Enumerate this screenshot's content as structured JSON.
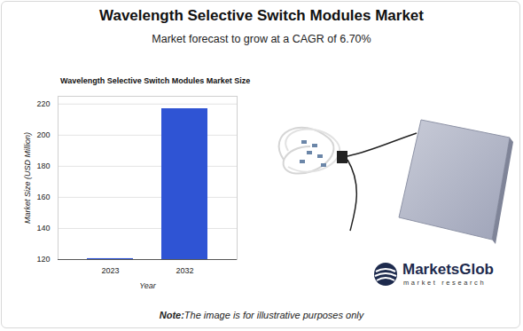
{
  "header": {
    "title": "Wavelength Selective Switch Modules Market",
    "subtitle": "Market forecast to grow at a CAGR of 6.70%"
  },
  "chart_data": {
    "type": "bar",
    "title": "Wavelength Selective Switch Modules Market Size",
    "x_label": "Year",
    "y_label": "Market Size (USD Million)",
    "categories": [
      "2023",
      "2032"
    ],
    "values": [
      120.6,
      217
    ],
    "color": "#2f54d4",
    "ylim": [
      120,
      225
    ],
    "yticks": [
      120,
      140,
      160,
      180,
      200,
      220
    ],
    "grid": true
  },
  "branding": {
    "name": "MarketsGlob",
    "tagline": "market research"
  },
  "note": {
    "prefix": "Note:",
    "text": "The image is for illustrative purposes only"
  }
}
